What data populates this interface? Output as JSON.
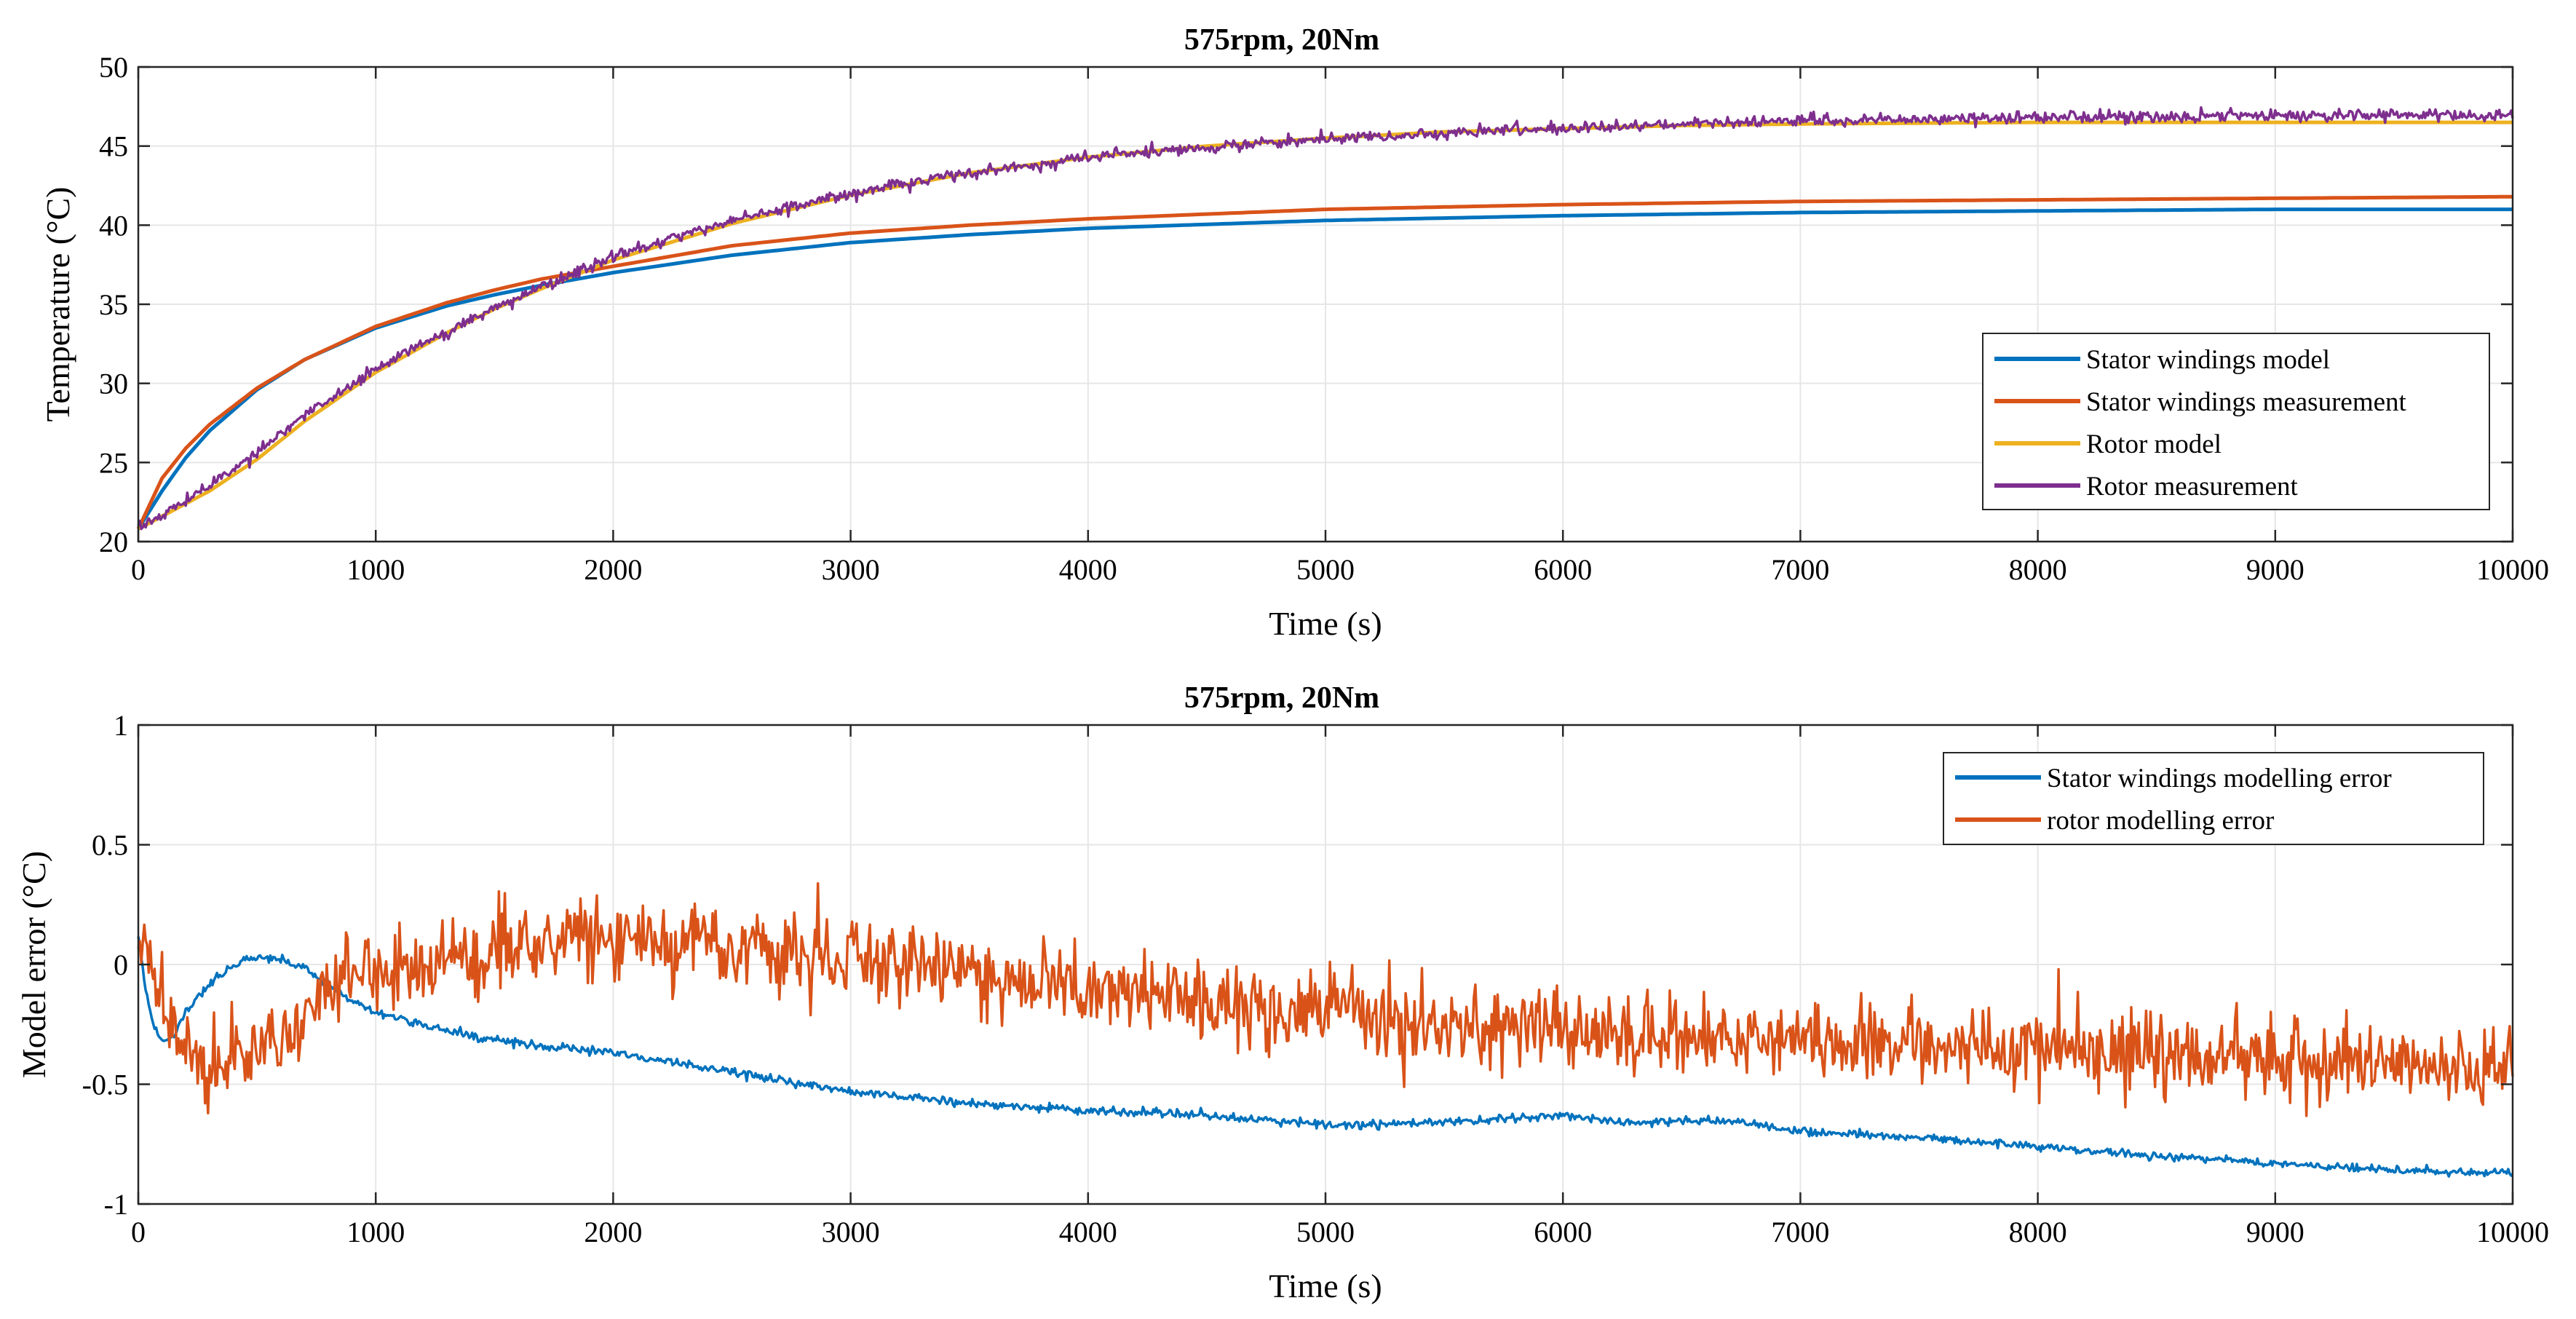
{
  "chart_data": [
    {
      "type": "line",
      "title": "575rpm, 20Nm",
      "xlabel": "Time (s)",
      "ylabel": "Temperature (°C)",
      "xlim": [
        0,
        10000
      ],
      "ylim": [
        20,
        50
      ],
      "xticks": [
        0,
        1000,
        2000,
        3000,
        4000,
        5000,
        6000,
        7000,
        8000,
        9000,
        10000
      ],
      "xtick_labels": [
        "0",
        "1000",
        "2000",
        "3000",
        "4000",
        "5000",
        "6000",
        "7000",
        "8000",
        "9000",
        "10000"
      ],
      "yticks": [
        20,
        25,
        30,
        35,
        40,
        45,
        50
      ],
      "ytick_labels": [
        "20",
        "25",
        "30",
        "35",
        "40",
        "45",
        "50"
      ],
      "grid": true,
      "legend_position": "right-middle",
      "series": [
        {
          "name": "Stator windings model",
          "color": "#0072BD",
          "x": [
            0,
            100,
            200,
            300,
            500,
            700,
            1000,
            1300,
            1500,
            1700,
            2000,
            2500,
            3000,
            3500,
            4000,
            5000,
            6000,
            7000,
            8000,
            9000,
            10000
          ],
          "y": [
            20.8,
            23.2,
            25.3,
            27.0,
            29.6,
            31.5,
            33.5,
            34.9,
            35.6,
            36.2,
            37.0,
            38.1,
            38.9,
            39.4,
            39.8,
            40.3,
            40.6,
            40.8,
            40.9,
            41.0,
            41.0
          ],
          "noise": 0
        },
        {
          "name": "Stator windings measurement",
          "color": "#D95319",
          "x": [
            0,
            100,
            200,
            300,
            500,
            700,
            1000,
            1300,
            1500,
            1700,
            2000,
            2500,
            3000,
            3500,
            4000,
            5000,
            6000,
            7000,
            8000,
            9000,
            10000
          ],
          "y": [
            20.8,
            24.0,
            25.9,
            27.4,
            29.7,
            31.5,
            33.6,
            35.1,
            35.9,
            36.6,
            37.4,
            38.7,
            39.5,
            40.0,
            40.4,
            41.0,
            41.3,
            41.5,
            41.6,
            41.7,
            41.8
          ],
          "noise": 0
        },
        {
          "name": "Rotor model",
          "color": "#EDB120",
          "x": [
            0,
            100,
            200,
            300,
            500,
            700,
            1000,
            1300,
            1500,
            1700,
            2000,
            2500,
            3000,
            3500,
            4000,
            4500,
            5000,
            5500,
            6000,
            6500,
            7000,
            8000,
            9000,
            10000
          ],
          "y": [
            20.8,
            21.6,
            22.4,
            23.2,
            25.2,
            27.6,
            30.7,
            33.2,
            34.7,
            36.0,
            37.8,
            40.1,
            41.9,
            43.3,
            44.3,
            45.0,
            45.5,
            45.9,
            46.1,
            46.3,
            46.4,
            46.5,
            46.5,
            46.5
          ],
          "noise": 0
        },
        {
          "name": "Rotor measurement",
          "color": "#7E2F8E",
          "x": [
            0,
            100,
            200,
            300,
            500,
            700,
            1000,
            1300,
            1500,
            1700,
            2000,
            2500,
            3000,
            3500,
            4000,
            4500,
            5000,
            5500,
            6000,
            6500,
            7000,
            8000,
            9000,
            10000
          ],
          "y": [
            20.8,
            21.7,
            22.6,
            23.5,
            25.6,
            28.0,
            30.9,
            33.3,
            34.7,
            36.1,
            38.0,
            40.3,
            42.0,
            43.3,
            44.3,
            44.9,
            45.5,
            45.8,
            46.1,
            46.4,
            46.6,
            46.8,
            46.9,
            47.0
          ],
          "noise": 0.25
        }
      ]
    },
    {
      "type": "line",
      "title": "575rpm, 20Nm",
      "xlabel": "Time (s)",
      "ylabel": "Model error (°C)",
      "xlim": [
        0,
        10000
      ],
      "ylim": [
        -1,
        1
      ],
      "xticks": [
        0,
        1000,
        2000,
        3000,
        4000,
        5000,
        6000,
        7000,
        8000,
        9000,
        10000
      ],
      "xtick_labels": [
        "0",
        "1000",
        "2000",
        "3000",
        "4000",
        "5000",
        "6000",
        "7000",
        "8000",
        "9000",
        "10000"
      ],
      "yticks": [
        -1,
        -0.5,
        0,
        0.5,
        1
      ],
      "ytick_labels": [
        "-1",
        "-0.5",
        "0",
        "0.5",
        "1"
      ],
      "grid": true,
      "legend_position": "top-right",
      "series": [
        {
          "name": "Stator windings modelling error",
          "color": "#0072BD",
          "x": [
            0,
            30,
            60,
            100,
            150,
            200,
            300,
            400,
            500,
            600,
            700,
            800,
            900,
            1000,
            1200,
            1400,
            1600,
            1800,
            2000,
            2200,
            2500,
            2800,
            3000,
            3500,
            4000,
            4500,
            5000,
            5500,
            6000,
            6300,
            6700,
            7000,
            7500,
            8000,
            8500,
            9000,
            9500,
            10000
          ],
          "y": [
            0.12,
            -0.1,
            -0.25,
            -0.32,
            -0.3,
            -0.2,
            -0.08,
            0.0,
            0.03,
            0.02,
            -0.02,
            -0.08,
            -0.15,
            -0.2,
            -0.25,
            -0.3,
            -0.33,
            -0.35,
            -0.37,
            -0.4,
            -0.45,
            -0.5,
            -0.53,
            -0.58,
            -0.61,
            -0.63,
            -0.67,
            -0.66,
            -0.63,
            -0.66,
            -0.65,
            -0.7,
            -0.72,
            -0.76,
            -0.8,
            -0.83,
            -0.86,
            -0.87
          ],
          "noise": 0.012
        },
        {
          "name": "rotor modelling error",
          "color": "#D95319",
          "x": [
            0,
            50,
            100,
            200,
            300,
            400,
            500,
            600,
            700,
            800,
            900,
            1000,
            1200,
            1400,
            1600,
            1800,
            2000,
            2200,
            2500,
            2800,
            3000,
            3500,
            4000,
            4500,
            5000,
            5500,
            6000,
            6500,
            7000,
            7500,
            8000,
            8500,
            9000,
            9500,
            10000
          ],
          "y": [
            0.15,
            0.05,
            -0.15,
            -0.35,
            -0.42,
            -0.4,
            -0.35,
            -0.3,
            -0.2,
            -0.1,
            -0.05,
            -0.02,
            0.0,
            0.05,
            0.08,
            0.1,
            0.12,
            0.1,
            0.08,
            0.05,
            0.02,
            -0.05,
            -0.1,
            -0.15,
            -0.2,
            -0.25,
            -0.28,
            -0.3,
            -0.32,
            -0.34,
            -0.36,
            -0.38,
            -0.4,
            -0.42,
            -0.43
          ],
          "noise": 0.12
        }
      ]
    }
  ]
}
